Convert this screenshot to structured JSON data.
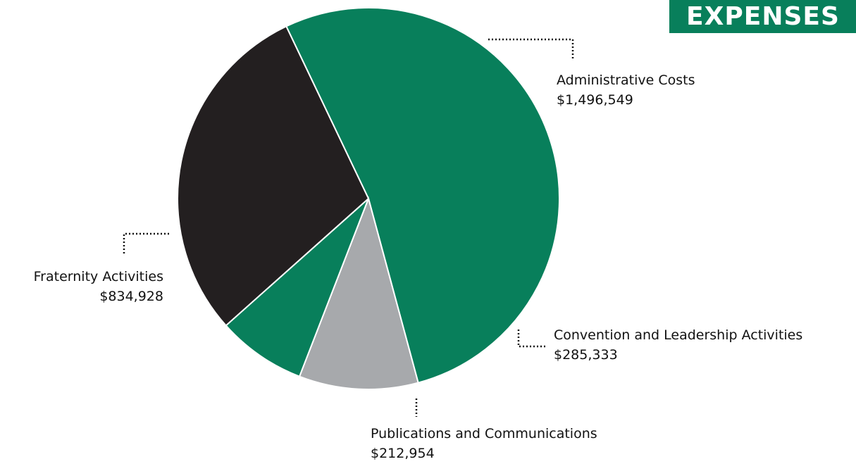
{
  "title": "EXPENSES",
  "colors": {
    "accent": "#087f5b",
    "black": "#231f20",
    "gray": "#a7a9ac",
    "title_bg": "#087f5b",
    "title_text": "#ffffff"
  },
  "chart_data": {
    "type": "pie",
    "title": "EXPENSES",
    "categories": [
      "Administrative Costs",
      "Convention and Leadership Activities",
      "Publications and Communications",
      "Fraternity Activities"
    ],
    "values": [
      1496549,
      285333,
      212954,
      834928
    ],
    "value_labels": [
      "$1,496,549",
      "$285,333",
      "$212,954",
      "$834,928"
    ],
    "colors": [
      "#087f5b",
      "#a7a9ac",
      "#087f5b",
      "#231f20"
    ],
    "legend": "none"
  }
}
